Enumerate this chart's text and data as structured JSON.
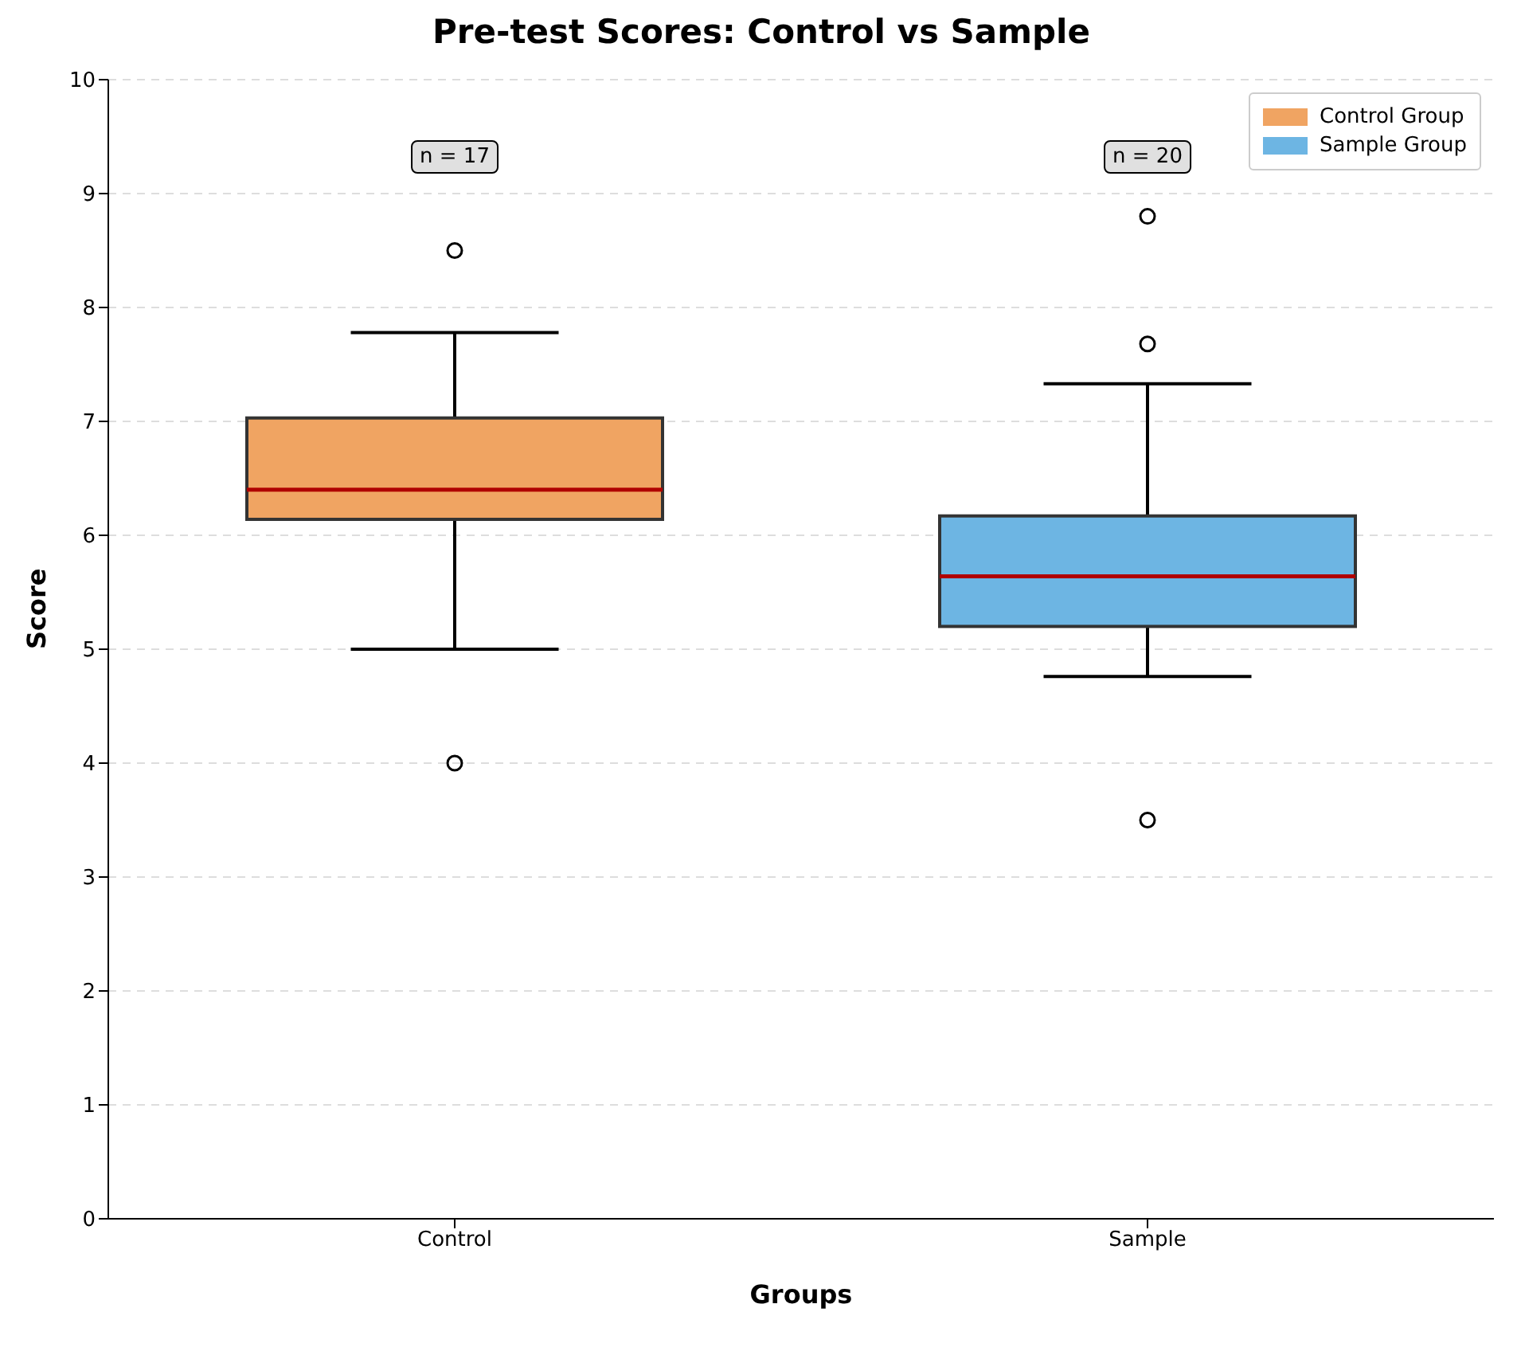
{
  "chart_data": {
    "type": "box",
    "title": "Pre-test Scores: Control vs Sample",
    "xlabel": "Groups",
    "ylabel": "Score",
    "categories": [
      "Control",
      "Sample"
    ],
    "series": [
      {
        "name": "Control Group",
        "color": "#f0a462",
        "boxes": [
          {
            "low": 5.0,
            "q1": 6.14,
            "median": 6.4,
            "q3": 7.03,
            "high": 7.78,
            "outliers": [
              8.5,
              4.0
            ]
          },
          null
        ]
      },
      {
        "name": "Sample Group",
        "color": "#6db5e3",
        "boxes": [
          null,
          {
            "low": 4.76,
            "q1": 5.2,
            "median": 5.64,
            "q3": 6.17,
            "high": 7.33,
            "outliers": [
              8.8,
              7.68,
              3.5
            ]
          }
        ]
      }
    ],
    "annotations": [
      "n = 17",
      "n = 20"
    ],
    "ylim": [
      0,
      10
    ],
    "yticks": [
      0,
      1,
      2,
      3,
      4,
      5,
      6,
      7,
      8,
      9,
      10
    ],
    "grid": "y",
    "legend": "top right",
    "marker": "circle"
  }
}
